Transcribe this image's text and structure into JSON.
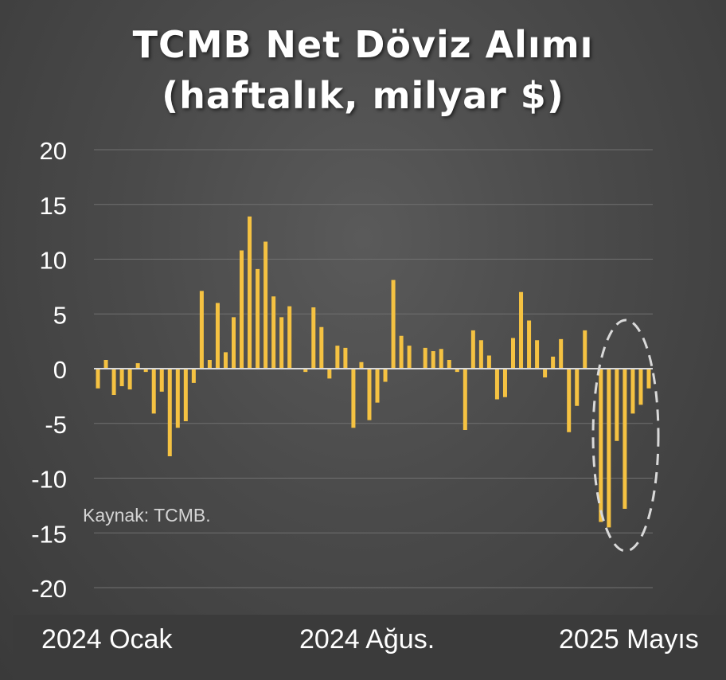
{
  "chart_data": {
    "type": "bar",
    "title_line1": "TCMB Net Döviz Alımı",
    "title_line2": "(haftalık, milyar $)",
    "source": "Kaynak: TCMB.",
    "ylim": [
      -20,
      20
    ],
    "yticks": [
      "20",
      "15",
      "10",
      "5",
      "0",
      "-5",
      "-10",
      "-15",
      "-20"
    ],
    "ytick_values": [
      20,
      15,
      10,
      5,
      0,
      -5,
      -10,
      -15,
      -20
    ],
    "grid": true,
    "x_labels": [
      "2024 Ocak",
      "2024 Ağus.",
      "2025 Mayıs"
    ],
    "bar_color": "#f5c242",
    "highlight_color": "#d9d9d9",
    "values": [
      -1.8,
      0.8,
      -2.4,
      -1.6,
      -1.9,
      0.5,
      -0.3,
      -4.1,
      -2.1,
      -8.0,
      -5.4,
      -4.8,
      -1.3,
      7.1,
      0.8,
      6.0,
      1.5,
      4.7,
      10.8,
      13.9,
      9.1,
      11.6,
      6.6,
      4.7,
      5.7,
      0.0,
      -0.3,
      5.6,
      3.8,
      -0.9,
      2.1,
      1.9,
      -5.4,
      0.6,
      -4.7,
      -3.1,
      -1.2,
      8.1,
      3.0,
      2.1,
      0.0,
      1.9,
      1.6,
      1.8,
      0.8,
      -0.3,
      -5.6,
      3.5,
      2.6,
      1.2,
      -2.8,
      -2.6,
      2.8,
      7.0,
      4.4,
      2.6,
      -0.8,
      1.1,
      2.7,
      -5.8,
      -3.4,
      3.5,
      0.0,
      -14.0,
      -14.5,
      -6.6,
      -12.8,
      -4.1,
      -3.3,
      -1.8
    ]
  }
}
